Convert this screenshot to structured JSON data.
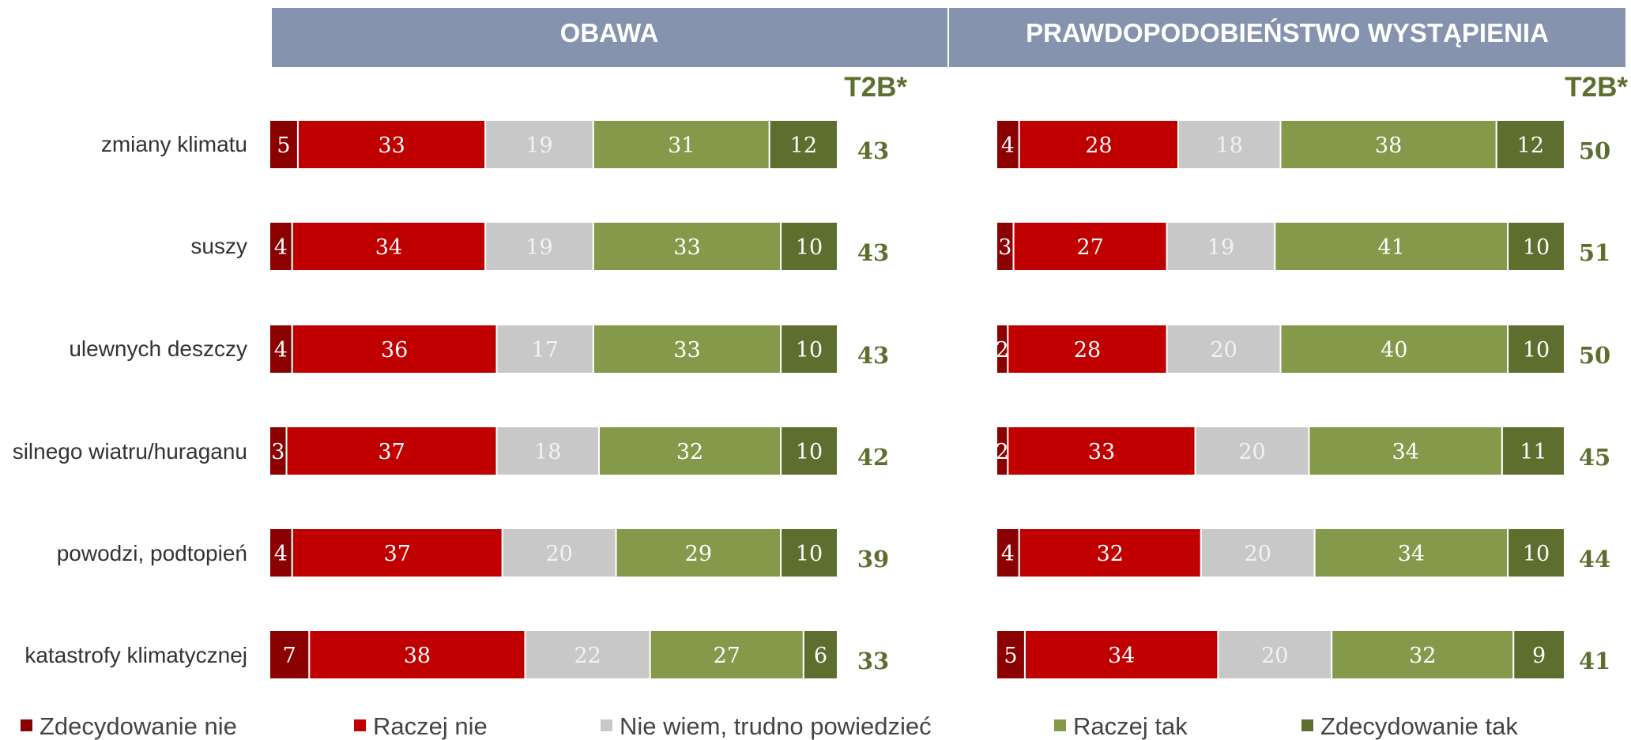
{
  "colors": {
    "header_bg": "#8593ae",
    "t2b_text": "#5d6e2f",
    "segments": [
      "#8b0000",
      "#c00000",
      "#c8c8c8",
      "#84994a",
      "#5d6e2f"
    ],
    "segment_text": [
      "#ffffff",
      "#ffffff",
      "#f2f2f2",
      "#ffffff",
      "#ffffff"
    ]
  },
  "chart_data": [
    {
      "type": "bar",
      "orientation": "horizontal-stacked-100",
      "title": "OBAWA",
      "t2b_label": "T2B*",
      "categories": [
        "zmiany klimatu",
        "suszy",
        "ulewnych deszczy",
        "silnego wiatru/huraganu",
        "powodzi, podtopień",
        "katastrofy klimatycznej"
      ],
      "series": [
        {
          "name": "Zdecydowanie nie",
          "values": [
            5,
            4,
            4,
            3,
            4,
            7
          ]
        },
        {
          "name": "Raczej nie",
          "values": [
            33,
            34,
            36,
            37,
            37,
            38
          ]
        },
        {
          "name": "Nie wiem, trudno powiedzieć",
          "values": [
            19,
            19,
            17,
            18,
            20,
            22
          ]
        },
        {
          "name": "Raczej tak",
          "values": [
            31,
            33,
            33,
            32,
            29,
            27
          ]
        },
        {
          "name": "Zdecydowanie tak",
          "values": [
            12,
            10,
            10,
            10,
            10,
            6
          ]
        }
      ],
      "t2b": [
        43,
        43,
        43,
        42,
        39,
        33
      ],
      "legend_position": "bottom"
    },
    {
      "type": "bar",
      "orientation": "horizontal-stacked-100",
      "title": "PRAWDOPODOBIEŃSTWO WYSTĄPIENIA",
      "t2b_label": "T2B*",
      "categories": [
        "zmiany klimatu",
        "suszy",
        "ulewnych deszczy",
        "silnego wiatru/huraganu",
        "powodzi, podtopień",
        "katastrofy klimatycznej"
      ],
      "series": [
        {
          "name": "Zdecydowanie nie",
          "values": [
            4,
            3,
            2,
            2,
            4,
            5
          ]
        },
        {
          "name": "Raczej nie",
          "values": [
            28,
            27,
            28,
            33,
            32,
            34
          ]
        },
        {
          "name": "Nie wiem, trudno powiedzieć",
          "values": [
            18,
            19,
            20,
            20,
            20,
            20
          ]
        },
        {
          "name": "Raczej tak",
          "values": [
            38,
            41,
            40,
            34,
            34,
            32
          ]
        },
        {
          "name": "Zdecydowanie tak",
          "values": [
            12,
            10,
            10,
            11,
            10,
            9
          ]
        }
      ],
      "t2b": [
        50,
        51,
        50,
        45,
        44,
        41
      ],
      "legend_position": "bottom"
    }
  ]
}
